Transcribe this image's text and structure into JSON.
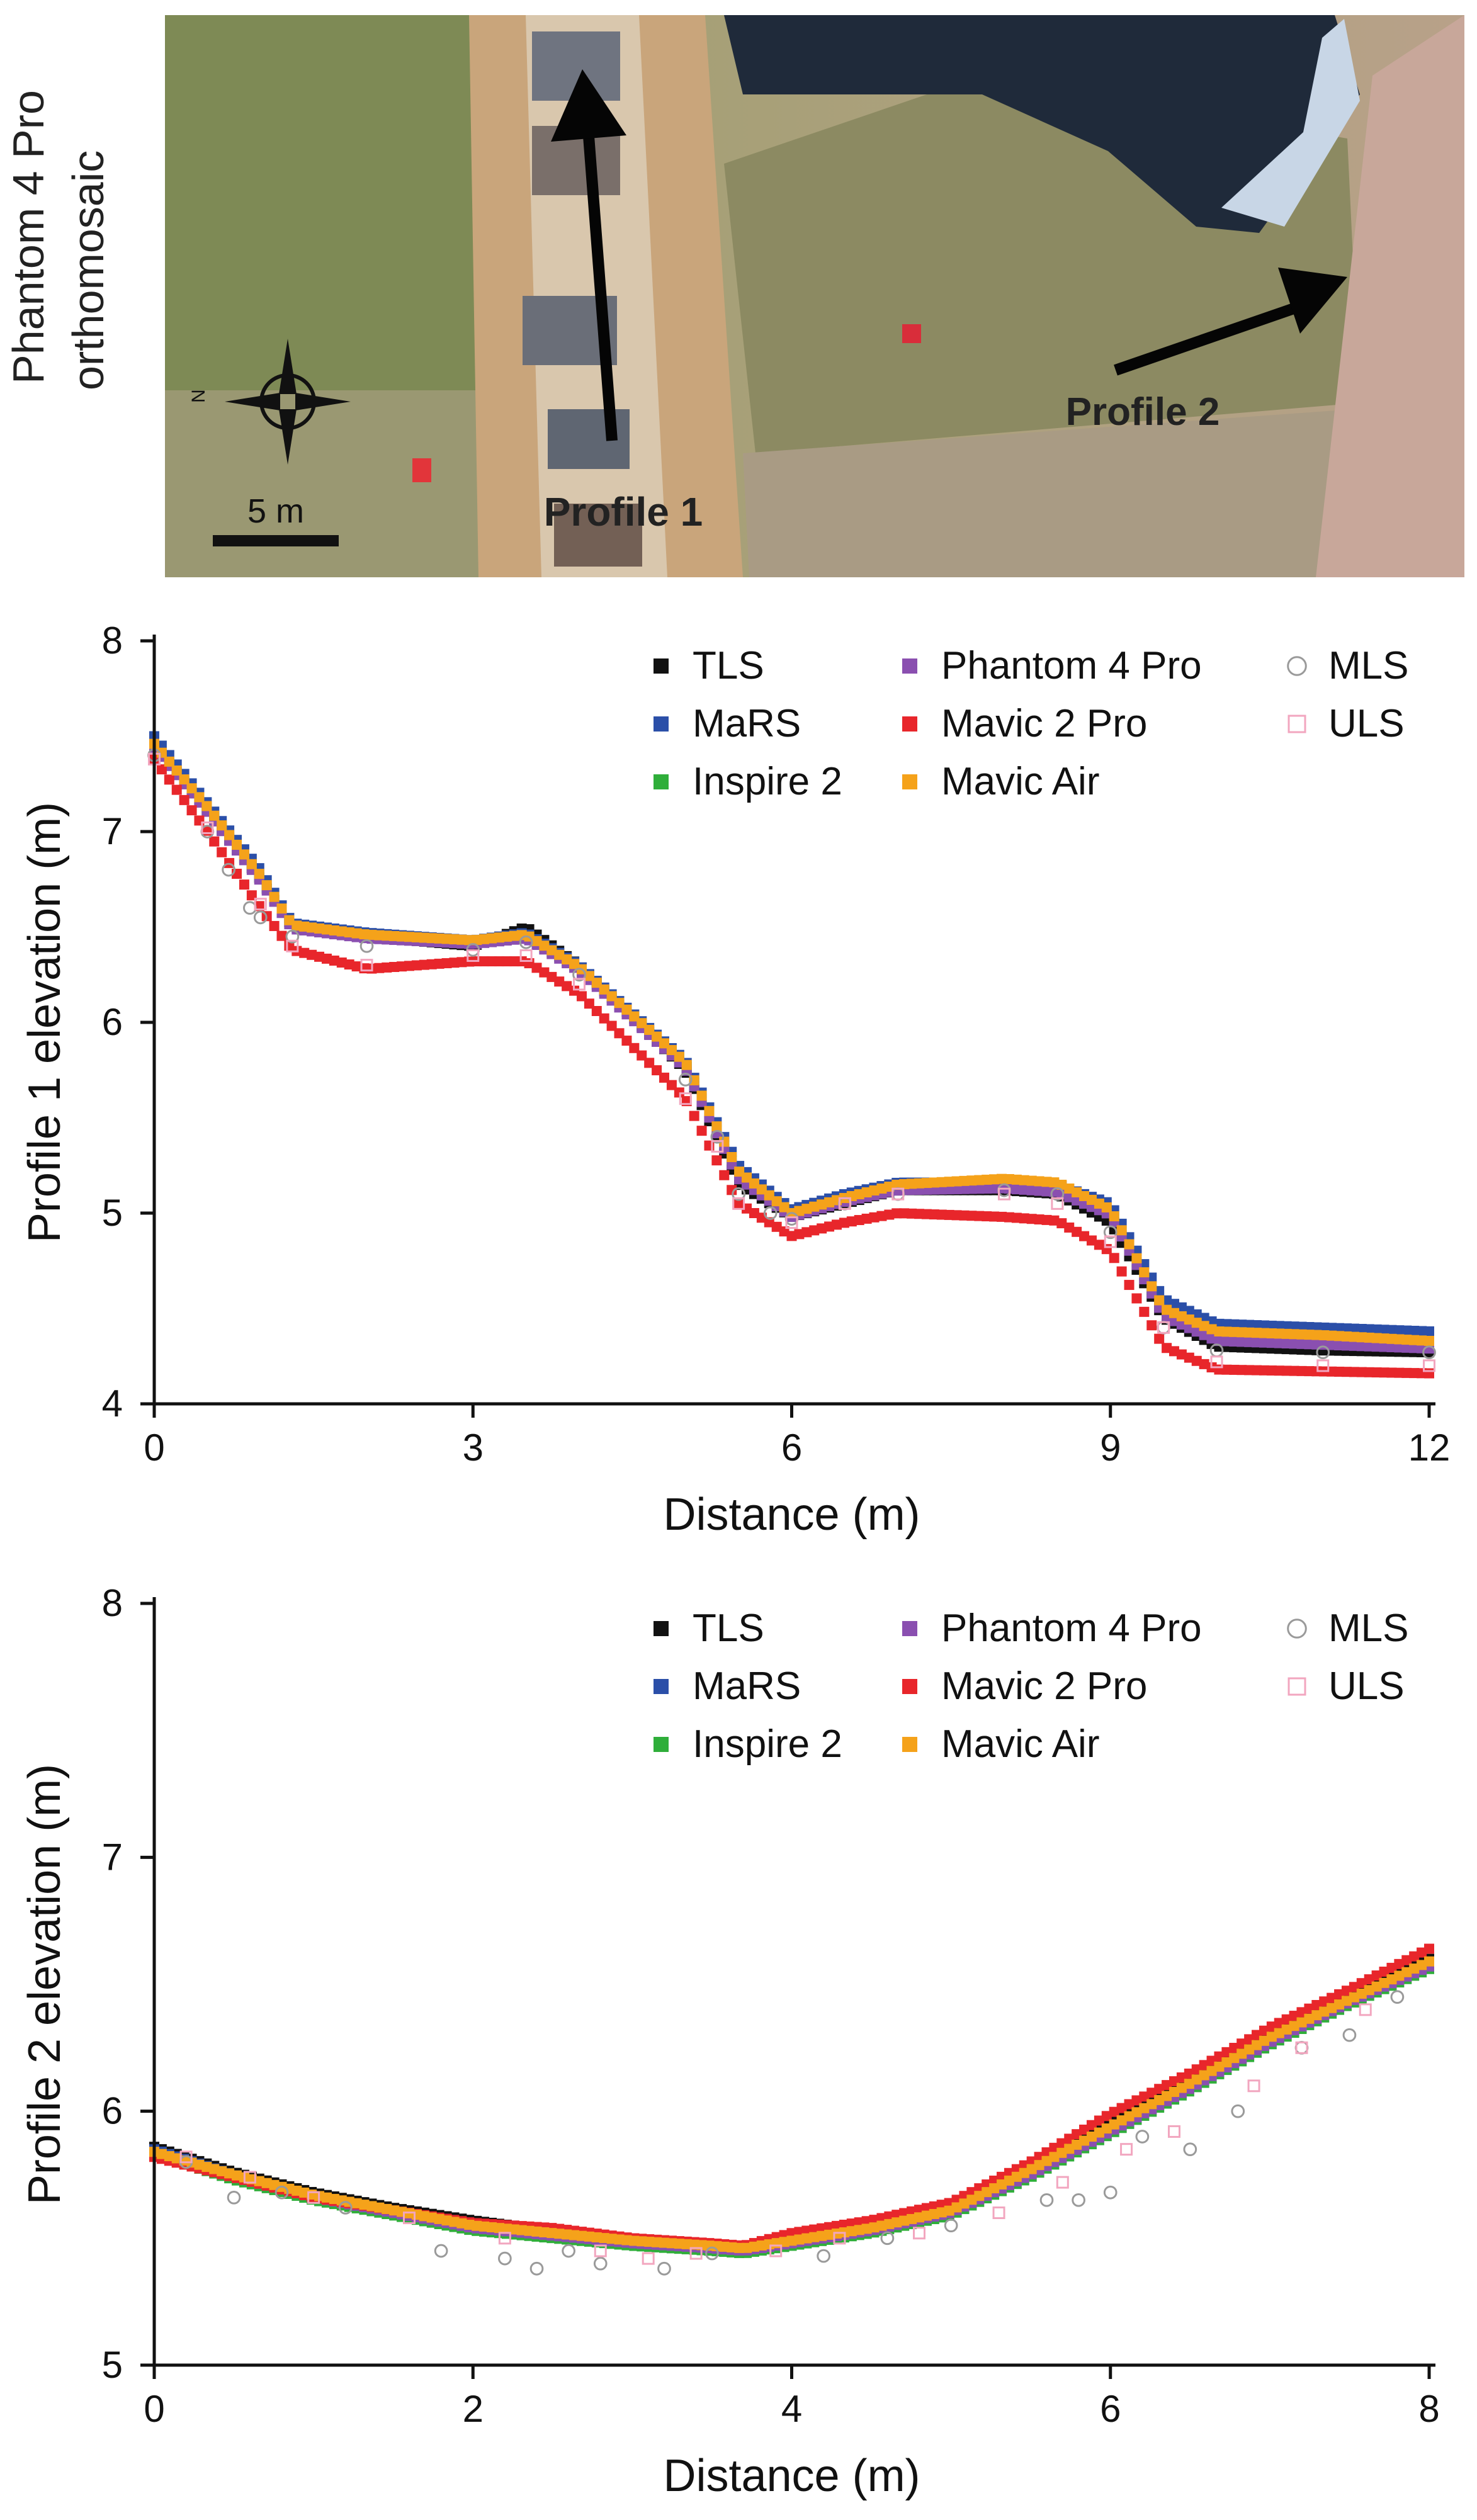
{
  "orthomosaic": {
    "caption_line1": "Phantom 4 Pro",
    "caption_line2": "orthomosaic",
    "scale_label": "5 m",
    "north_label": "N",
    "profile1_label": "Profile 1",
    "profile2_label": "Profile 2",
    "colors": {
      "grass": "#7e8a55",
      "path": "#c9a57b",
      "rock": "#6f7480",
      "water": "#1f2a3a",
      "ice": "#c8d6e6",
      "soil": "#b29a82"
    },
    "icons": [
      "compass-rose-icon",
      "arrow-icon",
      "marker-icon"
    ]
  },
  "legend_colors": {
    "TLS": "#111111",
    "MaRS": "#2b4fa8",
    "Inspire 2": "#2fae3a",
    "Phantom 4 Pro": "#8a4fb0",
    "Mavic 2 Pro": "#e8262b",
    "Mavic Air": "#f5a21a",
    "MLS": "#9a9a9a",
    "ULS": "#f2a6bf"
  },
  "chart_data": [
    {
      "type": "scatter",
      "title": "",
      "xlabel": "Distance (m)",
      "ylabel": "Profile 1 elevation (m)",
      "xlim": [
        0,
        12
      ],
      "ylim": [
        4,
        8
      ],
      "xticks": [
        "0",
        "3",
        "6",
        "9",
        "12"
      ],
      "yticks": [
        "4",
        "5",
        "6",
        "7",
        "8"
      ],
      "legend_columns": [
        [
          "TLS",
          "MaRS",
          "Inspire 2"
        ],
        [
          "Phantom 4 Pro",
          "Mavic 2 Pro",
          "Mavic Air"
        ],
        [
          "MLS",
          "ULS"
        ]
      ],
      "series": [
        {
          "name": "TLS",
          "marker": "square",
          "x": [
            0,
            0.5,
            1,
            1.3,
            2,
            3,
            3.5,
            4,
            5,
            5.5,
            6,
            6.5,
            7,
            8,
            8.5,
            9,
            9.5,
            10,
            11,
            12
          ],
          "y": [
            7.45,
            7.1,
            6.75,
            6.5,
            6.45,
            6.4,
            6.5,
            6.3,
            5.75,
            5.15,
            4.98,
            5.05,
            5.12,
            5.12,
            5.1,
            4.95,
            4.45,
            4.3,
            4.28,
            4.27
          ]
        },
        {
          "name": "MaRS",
          "marker": "square",
          "x": [
            0,
            0.5,
            1,
            1.3,
            2,
            3,
            3.5,
            4,
            5,
            5.5,
            6,
            6.5,
            7,
            8,
            8.5,
            9,
            9.5,
            10,
            11,
            12
          ],
          "y": [
            7.5,
            7.15,
            6.8,
            6.52,
            6.47,
            6.43,
            6.47,
            6.3,
            5.8,
            5.25,
            5.02,
            5.1,
            5.16,
            5.16,
            5.15,
            5.05,
            4.55,
            4.42,
            4.4,
            4.38
          ]
        },
        {
          "name": "Inspire 2",
          "marker": "square",
          "x": [
            0,
            0.5,
            1,
            1.3,
            2,
            3,
            3.5,
            4,
            5,
            5.5,
            6,
            6.5,
            7,
            8,
            8.5,
            9,
            9.5,
            10,
            11,
            12
          ],
          "y": [
            7.45,
            7.12,
            6.75,
            6.5,
            6.46,
            6.42,
            6.45,
            6.28,
            5.78,
            5.2,
            4.99,
            5.07,
            5.13,
            5.14,
            5.12,
            5.0,
            4.48,
            4.35,
            4.33,
            4.3
          ]
        },
        {
          "name": "Phantom 4 Pro",
          "marker": "square",
          "x": [
            0,
            0.5,
            1,
            1.3,
            2,
            3,
            3.5,
            4,
            5,
            5.5,
            6,
            6.5,
            7,
            8,
            8.5,
            9,
            9.5,
            10,
            11,
            12
          ],
          "y": [
            7.44,
            7.1,
            6.74,
            6.49,
            6.44,
            6.41,
            6.44,
            6.27,
            5.76,
            5.18,
            4.98,
            5.06,
            5.12,
            5.13,
            5.11,
            4.99,
            4.46,
            4.33,
            4.31,
            4.29
          ]
        },
        {
          "name": "Mavic 2 Pro",
          "marker": "square",
          "x": [
            0,
            0.5,
            1,
            1.3,
            2,
            3,
            3.5,
            4,
            5,
            5.5,
            6,
            6.5,
            7,
            8,
            8.5,
            9,
            9.5,
            10,
            11,
            12
          ],
          "y": [
            7.38,
            7.0,
            6.6,
            6.38,
            6.28,
            6.32,
            6.32,
            6.15,
            5.6,
            5.05,
            4.88,
            4.95,
            5.0,
            4.98,
            4.96,
            4.8,
            4.3,
            4.18,
            4.17,
            4.16
          ]
        },
        {
          "name": "Mavic Air",
          "marker": "square",
          "x": [
            0,
            0.5,
            1,
            1.3,
            2,
            3,
            3.5,
            4,
            5,
            5.5,
            6,
            6.5,
            7,
            8,
            8.5,
            9,
            9.5,
            10,
            11,
            12
          ],
          "y": [
            7.46,
            7.13,
            6.77,
            6.51,
            6.46,
            6.43,
            6.46,
            6.29,
            5.79,
            5.22,
            5.0,
            5.08,
            5.15,
            5.18,
            5.16,
            5.02,
            4.5,
            4.38,
            4.36,
            4.33
          ]
        },
        {
          "name": "MLS",
          "marker": "circle",
          "x": [
            0,
            0.5,
            0.7,
            0.9,
            1,
            1.3,
            2,
            3,
            3.5,
            4,
            5,
            5.3,
            5.5,
            5.8,
            6,
            6.5,
            7,
            8,
            8.5,
            9,
            9.5,
            10,
            11,
            12
          ],
          "y": [
            7.4,
            7.0,
            6.8,
            6.6,
            6.55,
            6.45,
            6.4,
            6.38,
            6.42,
            6.25,
            5.7,
            5.4,
            5.1,
            5.0,
            4.97,
            5.05,
            5.1,
            5.12,
            5.1,
            4.9,
            4.4,
            4.28,
            4.27,
            4.27
          ]
        },
        {
          "name": "ULS",
          "marker": "square-open",
          "x": [
            0,
            0.5,
            1,
            1.3,
            2,
            3,
            3.5,
            4,
            5,
            5.3,
            5.5,
            6,
            6.5,
            7,
            8,
            8.5,
            9,
            9.5,
            10,
            11,
            12
          ],
          "y": [
            7.38,
            7.02,
            6.62,
            6.4,
            6.3,
            6.35,
            6.35,
            6.2,
            5.6,
            5.35,
            5.05,
            4.95,
            5.05,
            5.1,
            5.1,
            5.05,
            4.85,
            4.4,
            4.22,
            4.2,
            4.2
          ]
        }
      ]
    },
    {
      "type": "scatter",
      "title": "",
      "xlabel": "Distance (m)",
      "ylabel": "Profile 2 elevation (m)",
      "xlim": [
        0,
        8
      ],
      "ylim": [
        5,
        8
      ],
      "xticks": [
        "0",
        "2",
        "4",
        "6",
        "8"
      ],
      "yticks": [
        "5",
        "6",
        "7",
        "8"
      ],
      "legend_columns": [
        [
          "TLS",
          "MaRS",
          "Inspire 2"
        ],
        [
          "Phantom 4 Pro",
          "Mavic 2 Pro",
          "Mavic Air"
        ],
        [
          "MLS",
          "ULS"
        ]
      ],
      "series": [
        {
          "name": "TLS",
          "marker": "square",
          "x": [
            0,
            0.5,
            1,
            1.5,
            2,
            2.5,
            3,
            3.5,
            3.7,
            4,
            4.5,
            5,
            5.5,
            6,
            6.5,
            7,
            7.5,
            8
          ],
          "y": [
            5.86,
            5.76,
            5.68,
            5.62,
            5.57,
            5.53,
            5.5,
            5.47,
            5.46,
            5.5,
            5.55,
            5.62,
            5.78,
            5.96,
            6.12,
            6.3,
            6.45,
            6.6
          ]
        },
        {
          "name": "MaRS",
          "marker": "square",
          "x": [
            0,
            0.5,
            1,
            1.5,
            2,
            2.5,
            3,
            3.5,
            3.7,
            4,
            4.5,
            5,
            5.5,
            6,
            6.5,
            7,
            7.5,
            8
          ],
          "y": [
            5.85,
            5.75,
            5.66,
            5.6,
            5.55,
            5.52,
            5.48,
            5.46,
            5.45,
            5.48,
            5.54,
            5.6,
            5.76,
            5.93,
            6.1,
            6.28,
            6.43,
            6.58
          ]
        },
        {
          "name": "Inspire 2",
          "marker": "square",
          "x": [
            0,
            0.5,
            1,
            1.5,
            2,
            2.5,
            3,
            3.5,
            3.7,
            4,
            4.5,
            5,
            5.5,
            6,
            6.5,
            7,
            7.5,
            8
          ],
          "y": [
            5.83,
            5.73,
            5.65,
            5.59,
            5.53,
            5.5,
            5.47,
            5.45,
            5.44,
            5.47,
            5.52,
            5.59,
            5.74,
            5.91,
            6.08,
            6.26,
            6.42,
            6.56
          ]
        },
        {
          "name": "Phantom 4 Pro",
          "marker": "square",
          "x": [
            0,
            0.5,
            1,
            1.5,
            2,
            2.5,
            3,
            3.5,
            3.7,
            4,
            4.5,
            5,
            5.5,
            6,
            6.5,
            7,
            7.5,
            8
          ],
          "y": [
            5.84,
            5.74,
            5.66,
            5.6,
            5.54,
            5.51,
            5.48,
            5.46,
            5.45,
            5.48,
            5.53,
            5.6,
            5.75,
            5.92,
            6.09,
            6.27,
            6.43,
            6.57
          ]
        },
        {
          "name": "Mavic 2 Pro",
          "marker": "square",
          "x": [
            0,
            0.5,
            1,
            1.5,
            2,
            2.5,
            3,
            3.5,
            3.7,
            4,
            4.5,
            5,
            5.5,
            6,
            6.5,
            7,
            7.5,
            8
          ],
          "y": [
            5.82,
            5.74,
            5.66,
            5.61,
            5.56,
            5.54,
            5.5,
            5.48,
            5.47,
            5.52,
            5.57,
            5.64,
            5.8,
            5.99,
            6.15,
            6.33,
            6.48,
            6.64
          ]
        },
        {
          "name": "Mavic Air",
          "marker": "square",
          "x": [
            0,
            0.5,
            1,
            1.5,
            2,
            2.5,
            3,
            3.5,
            3.7,
            4,
            4.5,
            5,
            5.5,
            6,
            6.5,
            7,
            7.5,
            8
          ],
          "y": [
            5.84,
            5.75,
            5.67,
            5.61,
            5.55,
            5.52,
            5.49,
            5.47,
            5.46,
            5.49,
            5.54,
            5.61,
            5.77,
            5.94,
            6.11,
            6.29,
            6.44,
            6.59
          ]
        },
        {
          "name": "MLS",
          "marker": "circle",
          "x": [
            0.2,
            0.5,
            0.8,
            1.2,
            1.8,
            2.2,
            2.4,
            2.6,
            2.8,
            3.2,
            3.5,
            4.2,
            4.6,
            5.0,
            5.6,
            5.8,
            6.0,
            6.2,
            6.5,
            6.8,
            7.2,
            7.5,
            7.8
          ],
          "y": [
            5.8,
            5.66,
            5.68,
            5.62,
            5.45,
            5.42,
            5.38,
            5.45,
            5.4,
            5.38,
            5.44,
            5.43,
            5.5,
            5.55,
            5.65,
            5.65,
            5.68,
            5.9,
            5.85,
            6.0,
            6.25,
            6.3,
            6.45
          ]
        },
        {
          "name": "ULS",
          "marker": "square-open",
          "x": [
            0.2,
            0.6,
            1.0,
            1.6,
            2.2,
            2.8,
            3.1,
            3.4,
            3.9,
            4.3,
            4.8,
            5.3,
            5.7,
            6.1,
            6.4,
            6.9,
            7.2,
            7.6
          ],
          "y": [
            5.82,
            5.74,
            5.66,
            5.58,
            5.5,
            5.45,
            5.42,
            5.44,
            5.45,
            5.5,
            5.52,
            5.6,
            5.72,
            5.85,
            5.92,
            6.1,
            6.25,
            6.4
          ]
        }
      ]
    }
  ]
}
